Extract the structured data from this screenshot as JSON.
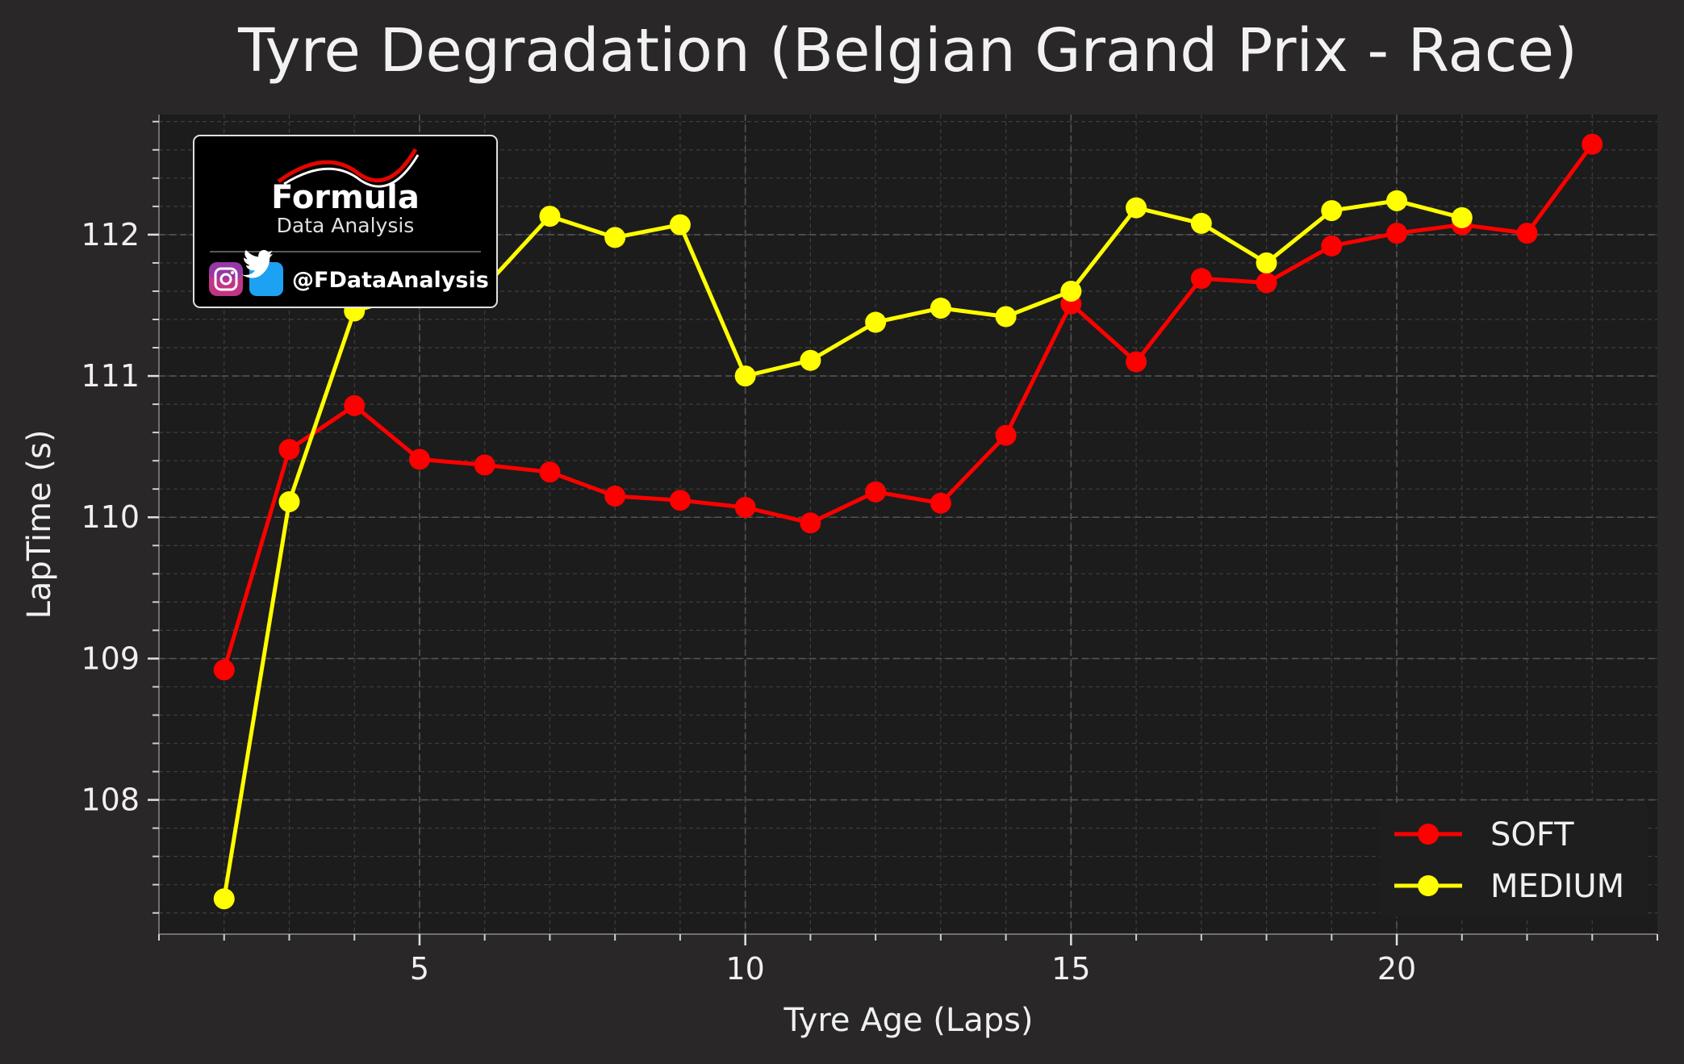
{
  "chart_data": {
    "type": "line",
    "title": "Tyre Degradation (Belgian Grand Prix - Race)",
    "xlabel": "Tyre Age (Laps)",
    "ylabel": "LapTime (s)",
    "xlim": [
      1,
      24
    ],
    "ylim": [
      107.05,
      112.85
    ],
    "x_ticks": [
      5,
      10,
      15,
      20
    ],
    "y_ticks": [
      108,
      109,
      110,
      111,
      112
    ],
    "grid": true,
    "legend": "bottom-right",
    "series": [
      {
        "name": "SOFT",
        "color": "#ff0000",
        "x": [
          2,
          3,
          4,
          5,
          6,
          7,
          8,
          9,
          10,
          11,
          12,
          13,
          14,
          15,
          16,
          17,
          18,
          19,
          20,
          21,
          22,
          23
        ],
        "values": [
          108.92,
          110.48,
          110.79,
          110.41,
          110.37,
          110.32,
          110.15,
          110.12,
          110.07,
          109.96,
          110.18,
          110.1,
          110.58,
          111.51,
          111.1,
          111.69,
          111.66,
          111.92,
          112.01,
          112.07,
          112.01,
          112.64
        ]
      },
      {
        "name": "MEDIUM",
        "color": "#ffff00",
        "x": [
          2,
          3,
          4,
          5,
          6,
          7,
          8,
          9,
          10,
          11,
          12,
          13,
          14,
          15,
          16,
          17,
          18,
          19,
          20,
          21
        ],
        "values": [
          107.3,
          110.11,
          111.46,
          111.59,
          111.63,
          112.13,
          111.98,
          112.07,
          111.0,
          111.11,
          111.38,
          111.48,
          111.42,
          111.6,
          112.19,
          112.08,
          111.8,
          112.17,
          112.24,
          112.12
        ]
      }
    ]
  },
  "watermark": {
    "brand": "Formula",
    "subtitle": "Data Analysis",
    "handle": "@FDataAnalysis",
    "icons": [
      "instagram-icon",
      "twitter-icon"
    ]
  }
}
